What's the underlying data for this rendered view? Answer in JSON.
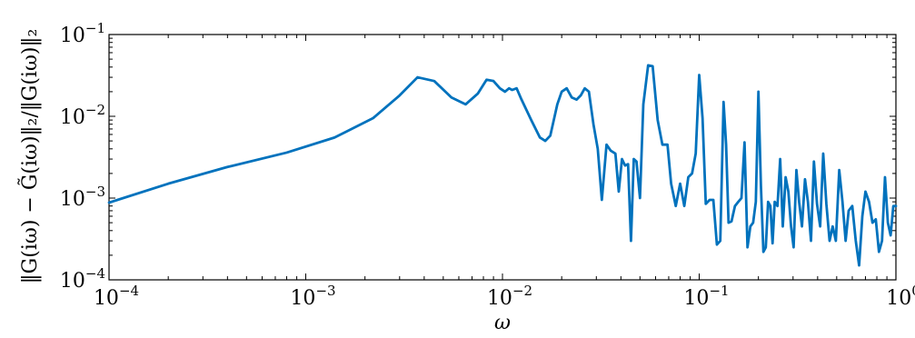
{
  "chart_data": {
    "type": "line",
    "x_scale": "log",
    "y_scale": "log",
    "xlim": [
      0.0001,
      1
    ],
    "ylim": [
      0.0001,
      0.1
    ],
    "xlabel": "ω",
    "ylabel": "‖G(iω) − G̃(iω)‖₂/‖G(iω)‖₂",
    "x_ticks": [
      {
        "base": "10",
        "exp": "−4",
        "value": 0.0001
      },
      {
        "base": "10",
        "exp": "−3",
        "value": 0.001
      },
      {
        "base": "10",
        "exp": "−2",
        "value": 0.01
      },
      {
        "base": "10",
        "exp": "−1",
        "value": 0.1
      },
      {
        "base": "10",
        "exp": "0",
        "value": 1
      }
    ],
    "y_ticks": [
      {
        "base": "10",
        "exp": "−4",
        "value": 0.0001
      },
      {
        "base": "10",
        "exp": "−3",
        "value": 0.001
      },
      {
        "base": "10",
        "exp": "−2",
        "value": 0.01
      },
      {
        "base": "10",
        "exp": "−1",
        "value": 0.1
      }
    ],
    "grid": false,
    "line_color": "#0072bd",
    "series": [
      {
        "x": [
          0.0001,
          0.0002,
          0.0004,
          0.0008,
          0.0014,
          0.0022,
          0.003,
          0.0037,
          0.0045,
          0.0055,
          0.0065,
          0.0075,
          0.0083,
          0.009,
          0.0097,
          0.0103,
          0.0108,
          0.0112,
          0.0118,
          0.0125,
          0.014,
          0.0155,
          0.0165,
          0.0175,
          0.019,
          0.02,
          0.0212,
          0.0225,
          0.0238,
          0.025,
          0.0262,
          0.0275,
          0.029,
          0.0305,
          0.032,
          0.0338,
          0.0355,
          0.0375,
          0.039,
          0.0405,
          0.042,
          0.0435,
          0.045,
          0.0465,
          0.048,
          0.05,
          0.052,
          0.055,
          0.058,
          0.0615,
          0.065,
          0.069,
          0.072,
          0.076,
          0.08,
          0.084,
          0.088,
          0.092,
          0.096,
          0.1,
          0.104,
          0.108,
          0.113,
          0.118,
          0.123,
          0.128,
          0.133,
          0.137,
          0.141,
          0.146,
          0.152,
          0.158,
          0.164,
          0.17,
          0.176,
          0.182,
          0.188,
          0.194,
          0.2,
          0.206,
          0.212,
          0.218,
          0.224,
          0.23,
          0.236,
          0.242,
          0.25,
          0.258,
          0.266,
          0.275,
          0.284,
          0.293,
          0.302,
          0.312,
          0.322,
          0.333,
          0.345,
          0.357,
          0.37,
          0.383,
          0.397,
          0.412,
          0.427,
          0.443,
          0.46,
          0.477,
          0.495,
          0.515,
          0.535,
          0.555,
          0.575,
          0.6,
          0.625,
          0.65,
          0.675,
          0.7,
          0.73,
          0.76,
          0.79,
          0.82,
          0.85,
          0.88,
          0.91,
          0.94,
          0.97,
          1.0
        ],
        "y": [
          0.00088,
          0.0015,
          0.0024,
          0.0036,
          0.0055,
          0.0095,
          0.018,
          0.03,
          0.027,
          0.017,
          0.014,
          0.019,
          0.028,
          0.027,
          0.022,
          0.02,
          0.022,
          0.021,
          0.022,
          0.016,
          0.009,
          0.0055,
          0.005,
          0.0058,
          0.014,
          0.02,
          0.022,
          0.017,
          0.016,
          0.018,
          0.022,
          0.02,
          0.008,
          0.004,
          0.00095,
          0.0045,
          0.0038,
          0.0035,
          0.0012,
          0.003,
          0.0025,
          0.0026,
          0.0003,
          0.003,
          0.0028,
          0.001,
          0.014,
          0.042,
          0.041,
          0.009,
          0.0045,
          0.0045,
          0.0015,
          0.0008,
          0.0015,
          0.0008,
          0.0018,
          0.002,
          0.0035,
          0.032,
          0.0095,
          0.00085,
          0.00095,
          0.00095,
          0.00027,
          0.0003,
          0.015,
          0.0045,
          0.0005,
          0.00052,
          0.0008,
          0.0009,
          0.001,
          0.0048,
          0.00025,
          0.00045,
          0.0005,
          0.0009,
          0.02,
          0.0014,
          0.00022,
          0.00025,
          0.0009,
          0.0008,
          0.00028,
          0.0009,
          0.0008,
          0.003,
          0.00045,
          0.0018,
          0.0012,
          0.00045,
          0.00025,
          0.0022,
          0.0009,
          0.00045,
          0.0017,
          0.0009,
          0.0003,
          0.0028,
          0.00085,
          0.00045,
          0.0035,
          0.00085,
          0.0003,
          0.00045,
          0.0003,
          0.0022,
          0.0009,
          0.0003,
          0.0007,
          0.0008,
          0.0003,
          0.00015,
          0.0006,
          0.0012,
          0.0009,
          0.0005,
          0.00055,
          0.00022,
          0.0003,
          0.0018,
          0.0005,
          0.00035,
          0.0008,
          0.0008
        ]
      }
    ]
  }
}
